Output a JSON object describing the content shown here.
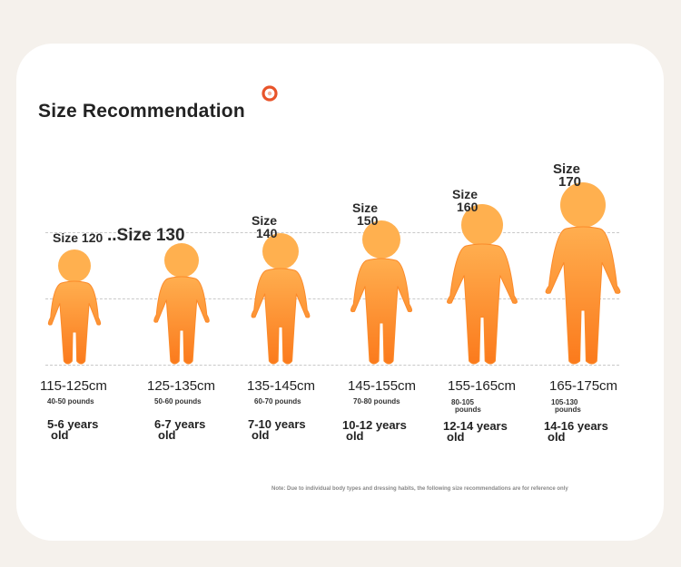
{
  "title": "Size Recommendation",
  "logo_color": "#e8542a",
  "figure_color_top": "#ffae4f",
  "figure_color_bottom": "#fb7a1c",
  "sizes": [
    {
      "label": "Size 120",
      "height": "115-125cm",
      "weight": "40-50 pounds",
      "age_line1": "5-6 years",
      "age_line2": "old"
    },
    {
      "label": "..Size 130",
      "height": "125-135cm",
      "weight": "50-60 pounds",
      "age_line1": "6-7 years",
      "age_line2": "old"
    },
    {
      "label_word": "Size",
      "label_num": "140",
      "height": "135-145cm",
      "weight": "60-70 pounds",
      "age_line1": "7-10 years",
      "age_line2": "old"
    },
    {
      "label_word": "Size",
      "label_num": "150",
      "height": "145-155cm",
      "weight": "70-80 pounds",
      "age_line1": "10-12 years",
      "age_line2": "old"
    },
    {
      "label_word": "Size",
      "label_num": "160",
      "height": "155-165cm",
      "weight_line1": "80-105",
      "weight_line2": "pounds",
      "age_line1": "12-14 years",
      "age_line2": "old"
    },
    {
      "label_word": "Size",
      "label_num": "170",
      "height": "165-175cm",
      "weight_line1": "105-130",
      "weight_line2": "pounds",
      "age_line1": "14-16 years",
      "age_line2": "old"
    }
  ],
  "note": "Note: Due to individual body types and dressing habits, the following size recommendations are for reference only"
}
